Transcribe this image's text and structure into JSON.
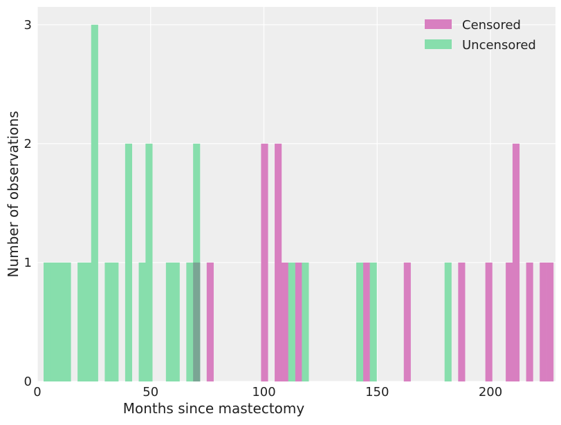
{
  "chart_data": {
    "type": "bar",
    "histogram": true,
    "xlabel": "Months since mastectomy",
    "ylabel": "Number of observations",
    "xlim": [
      0,
      228.7
    ],
    "ylim": [
      0,
      3.15
    ],
    "xticks": [
      0,
      50,
      100,
      150,
      200
    ],
    "yticks": [
      0,
      1,
      2,
      3
    ],
    "grid": true,
    "legend_position": "top-right",
    "bin_start": 2.75,
    "bin_width": 3.0,
    "bin_count": 75,
    "series": [
      {
        "name": "Censored",
        "color": "#d87fc0",
        "bins": [
          [
            22,
            1
          ],
          [
            24,
            1
          ],
          [
            32,
            2
          ],
          [
            34,
            2
          ],
          [
            35,
            1
          ],
          [
            37,
            1
          ],
          [
            47,
            1
          ],
          [
            53,
            1
          ],
          [
            61,
            1
          ],
          [
            65,
            1
          ],
          [
            68,
            1
          ],
          [
            69,
            2
          ],
          [
            71,
            1
          ],
          [
            73,
            1
          ],
          [
            74,
            1
          ]
        ]
      },
      {
        "name": "Uncensored",
        "color": "#87deac",
        "bins": [
          [
            0,
            1
          ],
          [
            1,
            1
          ],
          [
            2,
            1
          ],
          [
            3,
            1
          ],
          [
            5,
            1
          ],
          [
            6,
            1
          ],
          [
            7,
            3
          ],
          [
            9,
            1
          ],
          [
            10,
            1
          ],
          [
            12,
            2
          ],
          [
            14,
            1
          ],
          [
            15,
            2
          ],
          [
            18,
            1
          ],
          [
            19,
            1
          ],
          [
            21,
            1
          ],
          [
            22,
            2
          ],
          [
            36,
            1
          ],
          [
            38,
            1
          ],
          [
            46,
            1
          ],
          [
            48,
            1
          ],
          [
            59,
            1
          ]
        ]
      }
    ],
    "overlap_color": "#7aa594",
    "background_color": "#eeeeee"
  }
}
